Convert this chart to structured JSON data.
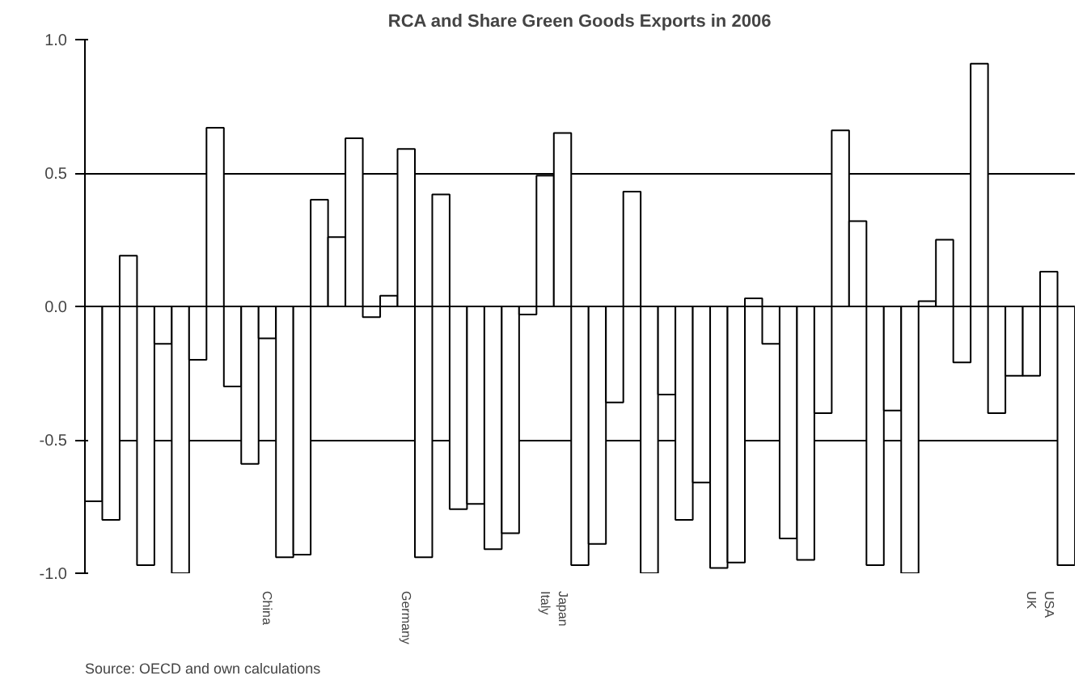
{
  "chart_data": {
    "type": "bar",
    "title": "RCA and Share Green Goods Exports in 2006",
    "categories": [
      null,
      null,
      null,
      null,
      null,
      null,
      null,
      null,
      null,
      null,
      "China",
      null,
      null,
      null,
      null,
      null,
      null,
      null,
      "Germany",
      null,
      null,
      null,
      null,
      null,
      null,
      null,
      "Italy",
      "Japan",
      null,
      null,
      null,
      null,
      null,
      null,
      null,
      null,
      null,
      null,
      null,
      null,
      null,
      null,
      null,
      null,
      null,
      null,
      null,
      null,
      null,
      null,
      null,
      null,
      null,
      null,
      "UK",
      "USA",
      null
    ],
    "values": [
      -0.73,
      -0.8,
      0.19,
      -0.97,
      -0.14,
      -1.0,
      -0.2,
      0.67,
      -0.3,
      -0.59,
      -0.12,
      -0.94,
      -0.93,
      0.4,
      0.26,
      0.63,
      -0.04,
      0.04,
      0.59,
      -0.94,
      0.42,
      -0.76,
      -0.74,
      -0.91,
      -0.85,
      -0.03,
      0.49,
      0.65,
      -0.97,
      -0.89,
      -0.36,
      0.43,
      -1.0,
      -0.33,
      -0.8,
      -0.66,
      -0.98,
      -0.96,
      0.03,
      -0.14,
      -0.87,
      -0.95,
      -0.4,
      0.66,
      0.32,
      -0.97,
      -0.39,
      -1.0,
      0.02,
      0.25,
      -0.21,
      0.91,
      -0.4,
      -0.26,
      -0.26,
      0.13,
      -0.97
    ],
    "color": "#ffffff",
    "ylim": [
      -1.0,
      1.0
    ],
    "yticks": [
      {
        "value": -1.0,
        "label": "-1.0"
      },
      {
        "value": -0.5,
        "label": "-0.5"
      },
      {
        "value": 0,
        "label": "0.0"
      },
      {
        "value": 0.5,
        "label": "0.5"
      },
      {
        "value": 1.0,
        "label": "1.0"
      }
    ],
    "grid": "y",
    "annotations": [
      "Source: OECD and own calculations"
    ]
  }
}
